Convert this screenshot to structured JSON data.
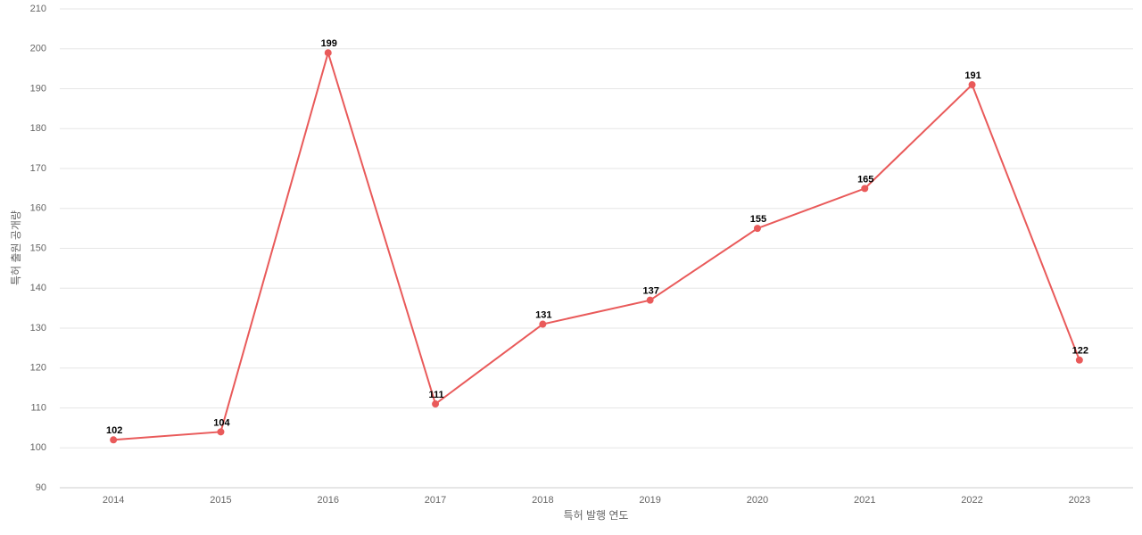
{
  "chart_data": {
    "type": "line",
    "x_label": "특허 발행 연도",
    "y_label": "특허 출원 공개량",
    "categories": [
      "2014",
      "2015",
      "2016",
      "2017",
      "2018",
      "2019",
      "2020",
      "2021",
      "2022",
      "2023"
    ],
    "values": [
      102,
      104,
      199,
      111,
      131,
      137,
      155,
      165,
      191,
      122
    ],
    "color": "#e95a5a",
    "ylim": [
      90,
      210
    ],
    "yticks": [
      90,
      100,
      110,
      120,
      130,
      140,
      150,
      160,
      170,
      180,
      190,
      200,
      210
    ],
    "grid": true
  }
}
